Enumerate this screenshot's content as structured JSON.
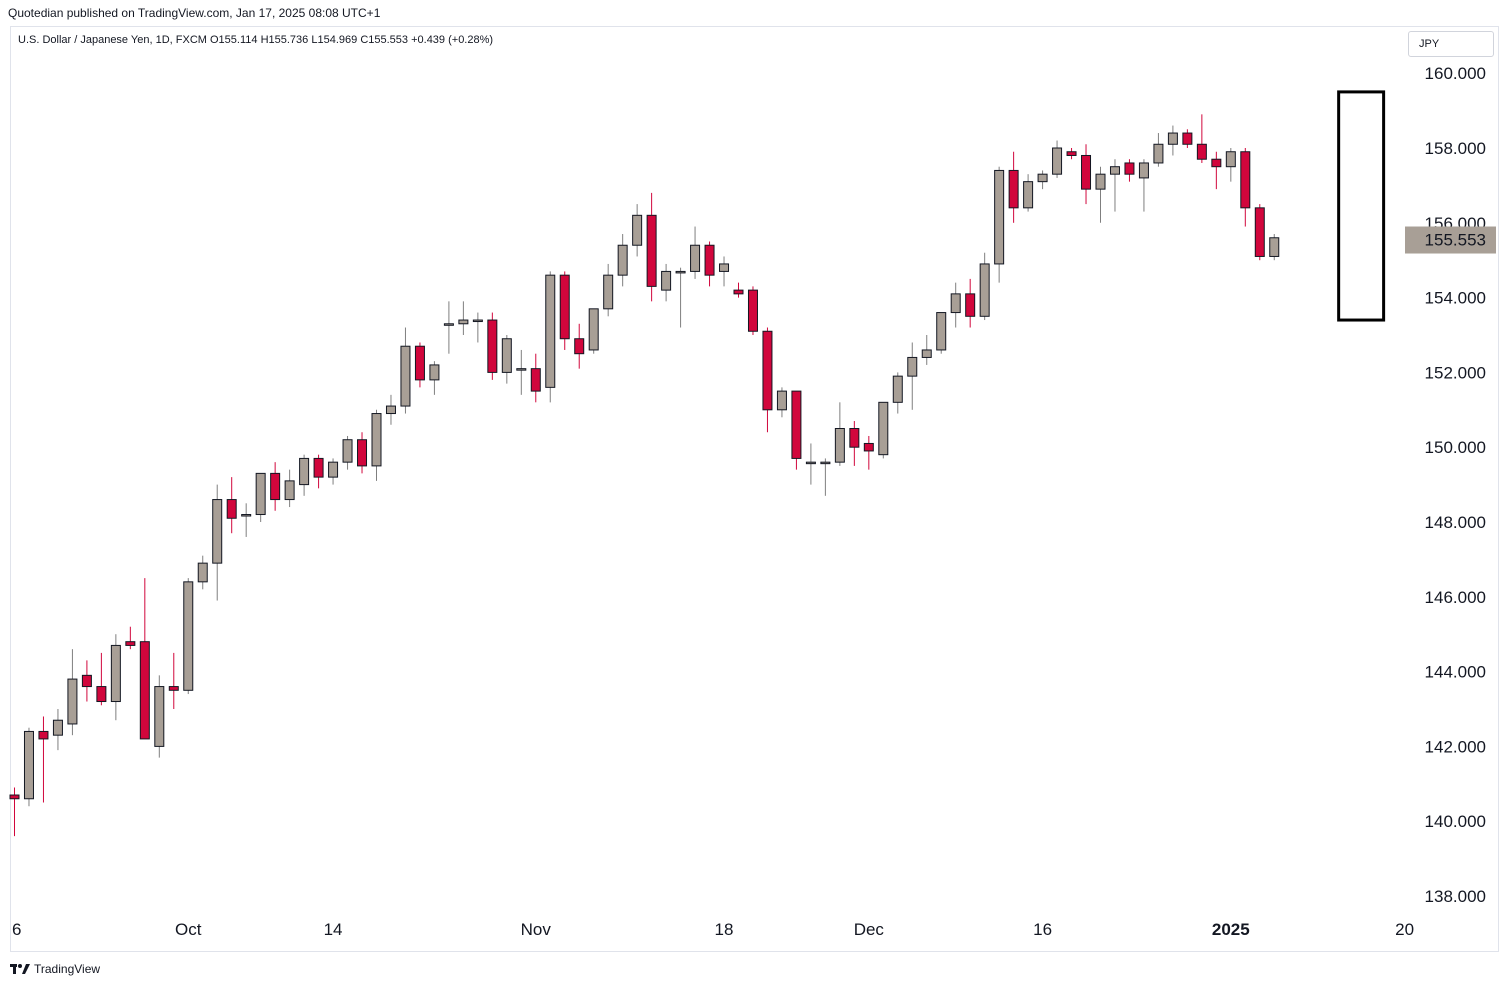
{
  "header": {
    "published_by": "Quotedian published on TradingView.com, Jan 17, 2025 08:08 UTC+1"
  },
  "legend": {
    "symbol": "U.S. Dollar / Japanese Yen, 1D, FXCM",
    "open": "O155.114",
    "high": "H155.736",
    "low": "L154.969",
    "close": "C155.553",
    "change": "+0.439 (+0.28%)"
  },
  "currency": "JPY",
  "footer": {
    "brand": "TradingView"
  },
  "colors": {
    "up_fill": "#a89f96",
    "down_fill": "#d1063c",
    "candle_border": "#131722",
    "price_label_bg": "#a89f96",
    "highlight_box": "#000000"
  },
  "chart_data": {
    "type": "candlestick",
    "title": "",
    "xlabel": "",
    "ylabel": "",
    "ylim": [
      137,
      161
    ],
    "y_ticks": [
      "138.000",
      "140.000",
      "142.000",
      "144.000",
      "146.000",
      "148.000",
      "150.000",
      "152.000",
      "154.000",
      "156.000",
      "158.000",
      "160.000"
    ],
    "last_price": "155.553",
    "x_ticks": [
      {
        "label": "6",
        "index": 0,
        "bold": false
      },
      {
        "label": "Oct",
        "index": 12,
        "bold": false
      },
      {
        "label": "14",
        "index": 22,
        "bold": false
      },
      {
        "label": "Nov",
        "index": 36,
        "bold": false
      },
      {
        "label": "18",
        "index": 49,
        "bold": false
      },
      {
        "label": "Dec",
        "index": 59,
        "bold": false
      },
      {
        "label": "16",
        "index": 71,
        "bold": false
      },
      {
        "label": "2025",
        "index": 84,
        "bold": true
      },
      {
        "label": "20",
        "index": 96,
        "bold": false
      }
    ],
    "highlight_range": {
      "from_index": 92,
      "to_index": 94,
      "low": 153.4,
      "high": 159.5
    },
    "candles": [
      {
        "o": 140.7,
        "h": 140.9,
        "l": 139.6,
        "c": 140.6
      },
      {
        "o": 140.6,
        "h": 142.5,
        "l": 140.4,
        "c": 142.4
      },
      {
        "o": 142.4,
        "h": 142.8,
        "l": 140.5,
        "c": 142.2
      },
      {
        "o": 142.3,
        "h": 143.0,
        "l": 141.9,
        "c": 142.7
      },
      {
        "o": 142.6,
        "h": 144.6,
        "l": 142.3,
        "c": 143.8
      },
      {
        "o": 143.9,
        "h": 144.3,
        "l": 143.2,
        "c": 143.6
      },
      {
        "o": 143.6,
        "h": 144.5,
        "l": 143.1,
        "c": 143.2
      },
      {
        "o": 143.2,
        "h": 145.0,
        "l": 142.7,
        "c": 144.7
      },
      {
        "o": 144.8,
        "h": 145.2,
        "l": 144.6,
        "c": 144.7
      },
      {
        "o": 144.8,
        "h": 146.5,
        "l": 142.2,
        "c": 142.2
      },
      {
        "o": 142.0,
        "h": 143.9,
        "l": 141.7,
        "c": 143.6
      },
      {
        "o": 143.6,
        "h": 144.5,
        "l": 143.0,
        "c": 143.5
      },
      {
        "o": 143.5,
        "h": 146.5,
        "l": 143.4,
        "c": 146.4
      },
      {
        "o": 146.4,
        "h": 147.1,
        "l": 146.2,
        "c": 146.9
      },
      {
        "o": 146.9,
        "h": 149.0,
        "l": 145.9,
        "c": 148.6
      },
      {
        "o": 148.6,
        "h": 149.2,
        "l": 147.7,
        "c": 148.1
      },
      {
        "o": 148.2,
        "h": 148.5,
        "l": 147.6,
        "c": 148.2
      },
      {
        "o": 148.2,
        "h": 149.3,
        "l": 148.0,
        "c": 149.3
      },
      {
        "o": 149.3,
        "h": 149.6,
        "l": 148.3,
        "c": 148.6
      },
      {
        "o": 148.6,
        "h": 149.4,
        "l": 148.4,
        "c": 149.1
      },
      {
        "o": 149.0,
        "h": 149.8,
        "l": 148.7,
        "c": 149.7
      },
      {
        "o": 149.7,
        "h": 149.8,
        "l": 148.9,
        "c": 149.2
      },
      {
        "o": 149.2,
        "h": 149.7,
        "l": 149.0,
        "c": 149.6
      },
      {
        "o": 149.6,
        "h": 150.3,
        "l": 149.4,
        "c": 150.2
      },
      {
        "o": 150.2,
        "h": 150.4,
        "l": 149.3,
        "c": 149.5
      },
      {
        "o": 149.5,
        "h": 151.0,
        "l": 149.1,
        "c": 150.9
      },
      {
        "o": 150.9,
        "h": 151.4,
        "l": 150.6,
        "c": 151.1
      },
      {
        "o": 151.1,
        "h": 153.2,
        "l": 150.9,
        "c": 152.7
      },
      {
        "o": 152.7,
        "h": 152.8,
        "l": 151.6,
        "c": 151.8
      },
      {
        "o": 151.8,
        "h": 152.3,
        "l": 151.4,
        "c": 152.2
      },
      {
        "o": 153.3,
        "h": 153.9,
        "l": 152.5,
        "c": 153.3
      },
      {
        "o": 153.3,
        "h": 153.9,
        "l": 153.0,
        "c": 153.4
      },
      {
        "o": 153.4,
        "h": 153.6,
        "l": 152.8,
        "c": 153.4
      },
      {
        "o": 153.4,
        "h": 153.6,
        "l": 151.8,
        "c": 152.0
      },
      {
        "o": 152.0,
        "h": 153.0,
        "l": 151.7,
        "c": 152.9
      },
      {
        "o": 152.1,
        "h": 152.6,
        "l": 151.4,
        "c": 152.1
      },
      {
        "o": 152.1,
        "h": 152.5,
        "l": 151.2,
        "c": 151.5
      },
      {
        "o": 151.6,
        "h": 154.7,
        "l": 151.2,
        "c": 154.6
      },
      {
        "o": 154.6,
        "h": 154.7,
        "l": 152.6,
        "c": 152.9
      },
      {
        "o": 152.9,
        "h": 153.3,
        "l": 152.1,
        "c": 152.5
      },
      {
        "o": 152.6,
        "h": 153.7,
        "l": 152.5,
        "c": 153.7
      },
      {
        "o": 153.7,
        "h": 154.9,
        "l": 153.5,
        "c": 154.6
      },
      {
        "o": 154.6,
        "h": 155.7,
        "l": 154.3,
        "c": 155.4
      },
      {
        "o": 155.4,
        "h": 156.5,
        "l": 155.1,
        "c": 156.2
      },
      {
        "o": 156.2,
        "h": 156.8,
        "l": 153.9,
        "c": 154.3
      },
      {
        "o": 154.2,
        "h": 154.9,
        "l": 153.9,
        "c": 154.7
      },
      {
        "o": 154.7,
        "h": 154.8,
        "l": 153.2,
        "c": 154.7
      },
      {
        "o": 154.7,
        "h": 155.9,
        "l": 154.5,
        "c": 155.4
      },
      {
        "o": 155.4,
        "h": 155.5,
        "l": 154.3,
        "c": 154.6
      },
      {
        "o": 154.7,
        "h": 155.1,
        "l": 154.3,
        "c": 154.9
      },
      {
        "o": 154.2,
        "h": 154.4,
        "l": 154.0,
        "c": 154.1
      },
      {
        "o": 154.2,
        "h": 154.3,
        "l": 153.0,
        "c": 153.1
      },
      {
        "o": 153.1,
        "h": 153.2,
        "l": 150.4,
        "c": 151.0
      },
      {
        "o": 151.0,
        "h": 151.6,
        "l": 150.8,
        "c": 151.5
      },
      {
        "o": 151.5,
        "h": 151.5,
        "l": 149.4,
        "c": 149.7
      },
      {
        "o": 149.6,
        "h": 150.1,
        "l": 149.0,
        "c": 149.6
      },
      {
        "o": 149.6,
        "h": 149.7,
        "l": 148.7,
        "c": 149.6
      },
      {
        "o": 149.6,
        "h": 151.2,
        "l": 149.5,
        "c": 150.5
      },
      {
        "o": 150.5,
        "h": 150.7,
        "l": 149.5,
        "c": 150.0
      },
      {
        "o": 150.1,
        "h": 150.3,
        "l": 149.4,
        "c": 149.9
      },
      {
        "o": 149.8,
        "h": 151.2,
        "l": 149.7,
        "c": 151.2
      },
      {
        "o": 151.2,
        "h": 152.0,
        "l": 150.9,
        "c": 151.9
      },
      {
        "o": 151.9,
        "h": 152.8,
        "l": 151.0,
        "c": 152.4
      },
      {
        "o": 152.4,
        "h": 153.0,
        "l": 152.2,
        "c": 152.6
      },
      {
        "o": 152.6,
        "h": 153.6,
        "l": 152.5,
        "c": 153.6
      },
      {
        "o": 153.6,
        "h": 154.4,
        "l": 153.2,
        "c": 154.1
      },
      {
        "o": 154.1,
        "h": 154.5,
        "l": 153.2,
        "c": 153.5
      },
      {
        "o": 153.5,
        "h": 155.2,
        "l": 153.4,
        "c": 154.9
      },
      {
        "o": 154.9,
        "h": 157.5,
        "l": 154.4,
        "c": 157.4
      },
      {
        "o": 157.4,
        "h": 157.9,
        "l": 156.0,
        "c": 156.4
      },
      {
        "o": 156.4,
        "h": 157.3,
        "l": 156.3,
        "c": 157.1
      },
      {
        "o": 157.1,
        "h": 157.4,
        "l": 156.9,
        "c": 157.3
      },
      {
        "o": 157.3,
        "h": 158.2,
        "l": 157.2,
        "c": 158.0
      },
      {
        "o": 157.9,
        "h": 158.0,
        "l": 157.7,
        "c": 157.8
      },
      {
        "o": 157.8,
        "h": 158.1,
        "l": 156.5,
        "c": 156.9
      },
      {
        "o": 156.9,
        "h": 157.5,
        "l": 156.0,
        "c": 157.3
      },
      {
        "o": 157.3,
        "h": 157.7,
        "l": 156.3,
        "c": 157.5
      },
      {
        "o": 157.6,
        "h": 157.7,
        "l": 157.1,
        "c": 157.3
      },
      {
        "o": 157.2,
        "h": 157.7,
        "l": 156.3,
        "c": 157.6
      },
      {
        "o": 157.6,
        "h": 158.4,
        "l": 157.5,
        "c": 158.1
      },
      {
        "o": 158.1,
        "h": 158.6,
        "l": 157.8,
        "c": 158.4
      },
      {
        "o": 158.4,
        "h": 158.5,
        "l": 158.0,
        "c": 158.1
      },
      {
        "o": 158.1,
        "h": 158.9,
        "l": 157.6,
        "c": 157.7
      },
      {
        "o": 157.7,
        "h": 157.9,
        "l": 156.9,
        "c": 157.5
      },
      {
        "o": 157.5,
        "h": 158.0,
        "l": 157.1,
        "c": 157.9
      },
      {
        "o": 157.9,
        "h": 158.0,
        "l": 155.9,
        "c": 156.4
      },
      {
        "o": 156.4,
        "h": 156.5,
        "l": 155.0,
        "c": 155.1
      },
      {
        "o": 155.1,
        "h": 155.7,
        "l": 155.0,
        "c": 155.6
      }
    ]
  }
}
